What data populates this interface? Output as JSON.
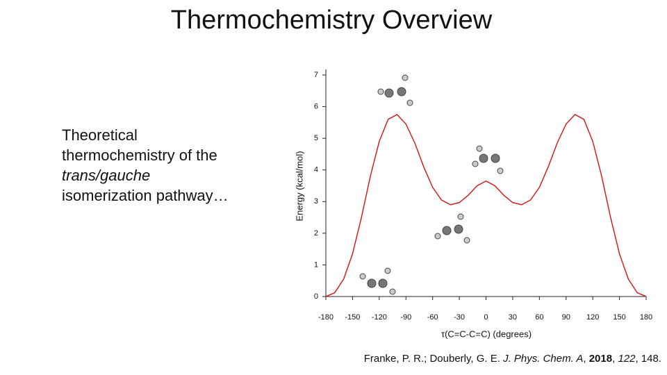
{
  "slide": {
    "title": "Thermochemistry Overview",
    "body": [
      "Theoretical thermochemistry of the ",
      "trans/gauche",
      " isomerization pathway…"
    ],
    "citation": [
      "Franke, P. R.; Douberly, G. E. ",
      "J. Phys. Chem. A",
      ", ",
      "2018",
      ", ",
      "122",
      ", 148."
    ]
  },
  "chart_data": {
    "type": "line",
    "x_label": "τ(C=C-C=C) (degrees)",
    "y_label": "Energy (kcal/mol)",
    "x": [
      -180,
      -170,
      -160,
      -150,
      -140,
      -130,
      -120,
      -110,
      -100,
      -90,
      -80,
      -70,
      -60,
      -50,
      -40,
      -30,
      -20,
      -10,
      0,
      10,
      20,
      30,
      40,
      50,
      60,
      70,
      80,
      90,
      100,
      110,
      120,
      130,
      140,
      150,
      160,
      170,
      180
    ],
    "series": [
      {
        "color": "#d42020",
        "values": [
          0,
          0.12,
          0.55,
          1.35,
          2.5,
          3.8,
          4.9,
          5.6,
          5.75,
          5.45,
          4.85,
          4.1,
          3.45,
          3.05,
          2.9,
          2.97,
          3.2,
          3.5,
          3.65,
          3.5,
          3.2,
          2.97,
          2.9,
          3.05,
          3.45,
          4.1,
          4.85,
          5.45,
          5.75,
          5.6,
          4.9,
          3.8,
          2.5,
          1.35,
          0.55,
          0.12,
          0
        ]
      }
    ],
    "xlim": [
      -180,
      180
    ],
    "xticks": [
      -180,
      -150,
      -120,
      -90,
      -60,
      -30,
      0,
      30,
      60,
      90,
      120,
      150,
      180
    ],
    "ylim": [
      0,
      7
    ],
    "yticks": [
      0,
      1,
      2,
      3,
      4,
      5,
      6,
      7
    ]
  }
}
